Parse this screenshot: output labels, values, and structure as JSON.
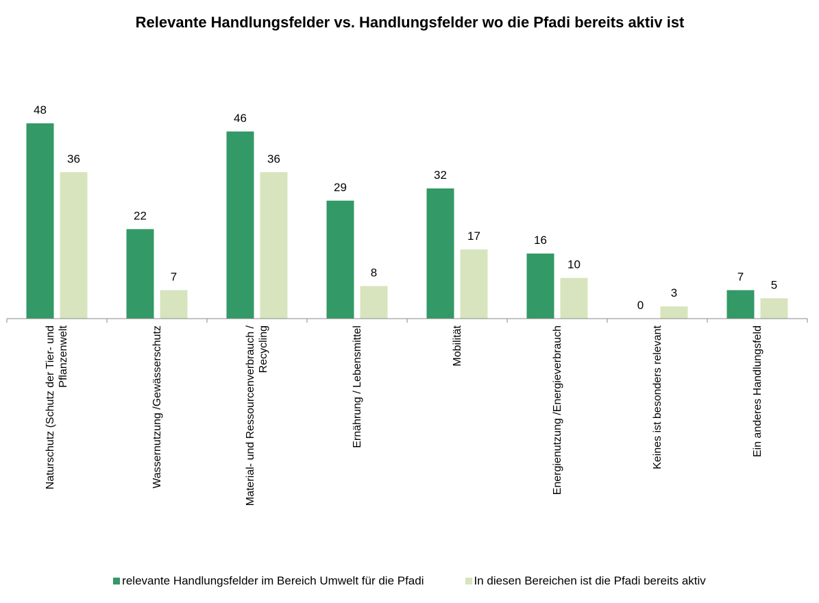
{
  "chart_data": {
    "type": "bar",
    "title": "Relevante Handlungsfelder vs. Handlungsfelder wo die Pfadi bereits aktiv ist",
    "categories": [
      "Naturschutz (Schutz der Tier- und Pflanzenwelt",
      "Wassernutzung /Gewässerschutz",
      "Material- und Ressourcenverbrauch / Recycling",
      "Ernährung / Lebensmittel",
      "Mobilität",
      "Energienutzung /Energieverbrauch",
      "Keines ist besonders relevant",
      "Ein anderes Handlungsfeld"
    ],
    "series": [
      {
        "name": "relevante Handlungsfelder im Bereich Umwelt für die Pfadi",
        "color": "#339966",
        "values": [
          48,
          22,
          46,
          29,
          32,
          16,
          0,
          7
        ]
      },
      {
        "name": "In diesen Bereichen ist die Pfadi bereits aktiv",
        "color": "#d7e4bd",
        "values": [
          36,
          7,
          36,
          8,
          17,
          10,
          3,
          5
        ]
      }
    ],
    "legend": "bottom"
  }
}
